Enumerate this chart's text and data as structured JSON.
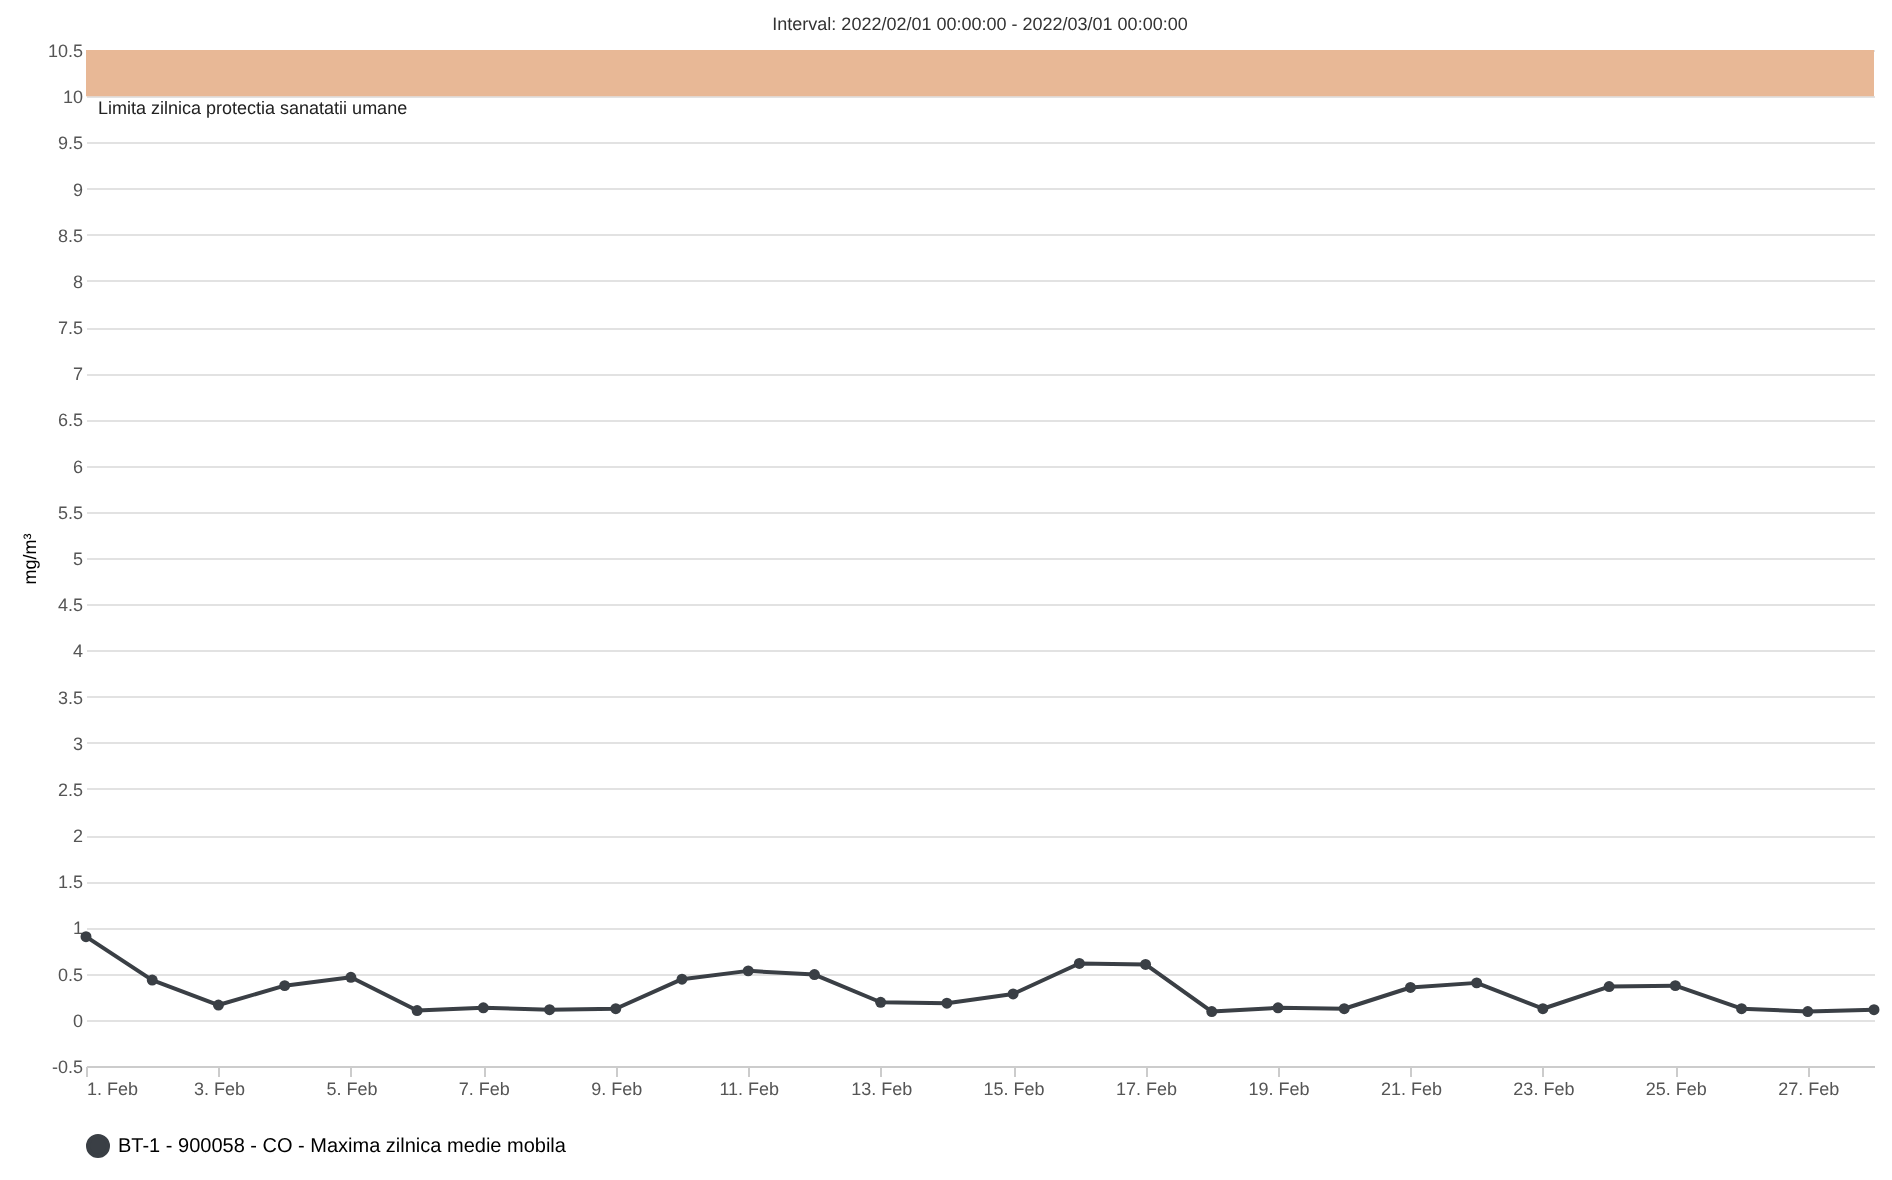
{
  "chart_data": {
    "type": "line",
    "title": "Interval: 2022/02/01 00:00:00 - 2022/03/01 00:00:00",
    "ylabel": "mg/m³",
    "x": [
      "2022-02-01",
      "2022-02-02",
      "2022-02-03",
      "2022-02-04",
      "2022-02-05",
      "2022-02-06",
      "2022-02-07",
      "2022-02-08",
      "2022-02-09",
      "2022-02-10",
      "2022-02-11",
      "2022-02-12",
      "2022-02-13",
      "2022-02-14",
      "2022-02-15",
      "2022-02-16",
      "2022-02-17",
      "2022-02-18",
      "2022-02-19",
      "2022-02-20",
      "2022-02-21",
      "2022-02-22",
      "2022-02-23",
      "2022-02-24",
      "2022-02-25",
      "2022-02-26",
      "2022-02-27",
      "2022-02-28"
    ],
    "series": [
      {
        "name": "BT-1 - 900058 - CO - Maxima zilnica medie mobila",
        "color": "#3a3f45",
        "values": [
          0.9,
          0.43,
          0.16,
          0.37,
          0.46,
          0.1,
          0.13,
          0.11,
          0.12,
          0.44,
          0.53,
          0.49,
          0.19,
          0.18,
          0.28,
          0.61,
          0.6,
          0.09,
          0.13,
          0.12,
          0.35,
          0.4,
          0.12,
          0.36,
          0.37,
          0.12,
          0.09,
          0.11
        ]
      }
    ],
    "xlim": [
      "2022-02-01",
      "2022-02-28"
    ],
    "xticks": [
      {
        "value": "2022-02-01",
        "label": "1. Feb"
      },
      {
        "value": "2022-02-03",
        "label": "3. Feb"
      },
      {
        "value": "2022-02-05",
        "label": "5. Feb"
      },
      {
        "value": "2022-02-07",
        "label": "7. Feb"
      },
      {
        "value": "2022-02-09",
        "label": "9. Feb"
      },
      {
        "value": "2022-02-11",
        "label": "11. Feb"
      },
      {
        "value": "2022-02-13",
        "label": "13. Feb"
      },
      {
        "value": "2022-02-15",
        "label": "15. Feb"
      },
      {
        "value": "2022-02-17",
        "label": "17. Feb"
      },
      {
        "value": "2022-02-19",
        "label": "19. Feb"
      },
      {
        "value": "2022-02-21",
        "label": "21. Feb"
      },
      {
        "value": "2022-02-23",
        "label": "23. Feb"
      },
      {
        "value": "2022-02-25",
        "label": "25. Feb"
      },
      {
        "value": "2022-02-27",
        "label": "27. Feb"
      }
    ],
    "ylim": [
      -0.5,
      10.5
    ],
    "yticks": [
      -0.5,
      0,
      0.5,
      1,
      1.5,
      2,
      2.5,
      3,
      3.5,
      4,
      4.5,
      5,
      5.5,
      6,
      6.5,
      7,
      7.5,
      8,
      8.5,
      9,
      9.5,
      10,
      10.5
    ],
    "bands": [
      {
        "axis": "y",
        "from": 10,
        "to": 10.5,
        "label": "Limita zilnica protectia sanatatii umane",
        "color": "#e8b896"
      }
    ],
    "grid": "y",
    "legend": "bottom",
    "marker": "circle",
    "line_style": "solid"
  }
}
